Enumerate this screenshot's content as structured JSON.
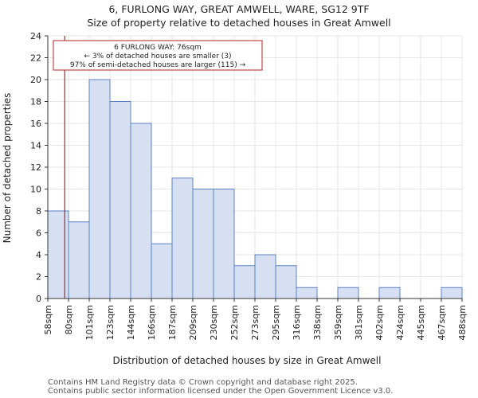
{
  "chart_data": {
    "type": "bar",
    "title": "6, FURLONG WAY, GREAT AMWELL, WARE, SG12 9TF",
    "subtitle": "Size of property relative to detached houses in Great Amwell",
    "xlabel": "Distribution of detached houses by size in Great Amwell",
    "ylabel": "Number of detached properties",
    "x_tick_labels": [
      "58sqm",
      "80sqm",
      "101sqm",
      "123sqm",
      "144sqm",
      "166sqm",
      "187sqm",
      "209sqm",
      "230sqm",
      "252sqm",
      "273sqm",
      "295sqm",
      "316sqm",
      "338sqm",
      "359sqm",
      "381sqm",
      "402sqm",
      "424sqm",
      "445sqm",
      "467sqm",
      "488sqm"
    ],
    "values": [
      8,
      7,
      20,
      18,
      16,
      5,
      11,
      10,
      10,
      3,
      4,
      3,
      1,
      0,
      1,
      0,
      1,
      0,
      0,
      1
    ],
    "ylim": [
      0,
      24
    ],
    "yticks": [
      0,
      2,
      4,
      6,
      8,
      10,
      12,
      14,
      16,
      18,
      20,
      22,
      24
    ],
    "grid": true,
    "marker": {
      "value_sqm": 76,
      "color": "#b22222",
      "lines": [
        "6 FURLONG WAY: 76sqm",
        "← 3% of detached houses are smaller (3)",
        "97% of semi-detached houses are larger (115) →"
      ]
    },
    "bar_fill": "#d6e0f2",
    "bar_edge": "#5b7fc7"
  },
  "footer": {
    "line1": "Contains HM Land Registry data © Crown copyright and database right 2025.",
    "line2": "Contains public sector information licensed under the Open Government Licence v3.0."
  }
}
